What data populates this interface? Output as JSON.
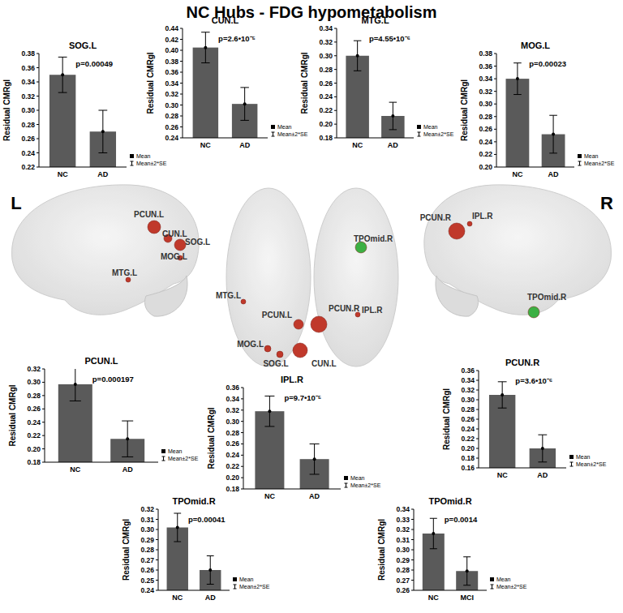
{
  "title": "NC Hubs - FDG hypometabolism",
  "chart_data": [
    {
      "type": "bar",
      "title": "SOG.L",
      "annotation": "p=0.00049",
      "y_label": "Residual CMRgl",
      "categories": [
        "NC",
        "AD"
      ],
      "values": [
        0.35,
        0.27
      ],
      "errors": [
        0.025,
        0.03
      ],
      "color": "#5a5a5a",
      "ylim": [
        0.22,
        0.38
      ],
      "yticks": [
        0.22,
        0.24,
        0.26,
        0.28,
        {
          "value": 0.3,
          "label": "0.30"
        },
        0.32,
        0.34,
        0.36,
        0.38
      ],
      "legend_entries": [
        "Mean",
        "Mean±2*SE"
      ]
    },
    {
      "type": "bar",
      "title": "CUN.L",
      "annotation": "p=2.6•10⁻⁵",
      "y_label": "Residual CMRgl",
      "categories": [
        "NC",
        "AD"
      ],
      "values": [
        0.405,
        0.302
      ],
      "errors": [
        0.028,
        0.03
      ],
      "color": "#5a5a5a",
      "ylim": [
        0.24,
        0.44
      ],
      "yticks": [
        0.24,
        0.26,
        0.28,
        {
          "value": 0.3,
          "label": "0.30"
        },
        0.32,
        0.34,
        0.36,
        0.38,
        {
          "value": 0.4,
          "label": "0.40"
        },
        0.42,
        0.44
      ],
      "legend_entries": [
        "Mean",
        "Mean±2*SE"
      ]
    },
    {
      "type": "bar",
      "title": "MTG.L",
      "annotation": "p=4.55•10⁻⁶",
      "y_label": "Residual CMRgl",
      "categories": [
        "NC",
        "AD"
      ],
      "values": [
        0.3,
        0.212
      ],
      "errors": [
        0.022,
        0.02
      ],
      "color": "#5a5a5a",
      "ylim": [
        0.18,
        0.34
      ],
      "yticks": [
        0.18,
        {
          "value": 0.2,
          "label": "0.20"
        },
        0.22,
        0.24,
        0.26,
        0.28,
        {
          "value": 0.3,
          "label": "0.30"
        },
        0.32,
        0.34
      ],
      "legend_entries": [
        "Mean",
        "Mean±2*SE"
      ]
    },
    {
      "type": "bar",
      "title": "MOG.L",
      "annotation": "p=0.00023",
      "y_label": "Residual CMRgl",
      "categories": [
        "NC",
        "AD"
      ],
      "values": [
        0.34,
        0.252
      ],
      "errors": [
        0.025,
        0.03
      ],
      "color": "#5a5a5a",
      "ylim": [
        0.2,
        0.38
      ],
      "yticks": [
        {
          "value": 0.2,
          "label": "0.20"
        },
        0.22,
        0.24,
        0.26,
        0.28,
        {
          "value": 0.3,
          "label": "0.30"
        },
        0.32,
        0.34,
        0.36,
        0.38
      ],
      "legend_entries": [
        "Mean",
        "Mean±2*SE"
      ]
    },
    {
      "type": "bar",
      "title": "PCUN.L",
      "annotation": "p=0.000197",
      "y_label": "Residual CMRgl",
      "categories": [
        "NC",
        "AD"
      ],
      "values": [
        0.297,
        0.215
      ],
      "errors": [
        0.025,
        0.027
      ],
      "color": "#5a5a5a",
      "ylim": [
        0.18,
        0.32
      ],
      "yticks": [
        0.18,
        {
          "value": 0.2,
          "label": "0.20"
        },
        0.22,
        0.24,
        0.26,
        0.28,
        {
          "value": 0.3,
          "label": "0.30"
        },
        0.32
      ],
      "legend_entries": [
        "Mean",
        "Mean±2*SE"
      ]
    },
    {
      "type": "bar",
      "title": "IPL.R",
      "annotation": "p=9.7•10⁻⁵",
      "y_label": "Residual CMRgl",
      "categories": [
        "NC",
        "AD"
      ],
      "values": [
        0.318,
        0.233
      ],
      "errors": [
        0.027,
        0.027
      ],
      "color": "#5a5a5a",
      "ylim": [
        0.18,
        0.36
      ],
      "yticks": [
        0.18,
        {
          "value": 0.2,
          "label": "0.20"
        },
        0.22,
        0.24,
        0.26,
        0.28,
        {
          "value": 0.3,
          "label": "0.30"
        },
        0.32,
        0.34,
        0.36
      ],
      "legend_entries": [
        "Mean",
        "Mean±2*SE"
      ]
    },
    {
      "type": "bar",
      "title": "PCUN.R",
      "annotation": "p=3.6•10⁻⁶",
      "y_label": "Residual CMRgl",
      "categories": [
        "NC",
        "AD"
      ],
      "values": [
        0.31,
        0.2
      ],
      "errors": [
        0.027,
        0.028
      ],
      "color": "#5a5a5a",
      "ylim": [
        0.16,
        0.36
      ],
      "yticks": [
        0.16,
        0.18,
        {
          "value": 0.2,
          "label": "0.20"
        },
        0.22,
        0.24,
        0.26,
        0.28,
        {
          "value": 0.3,
          "label": "0.30"
        },
        0.32,
        0.34,
        0.36
      ],
      "legend_entries": [
        "Mean",
        "Mean±2*SE"
      ]
    },
    {
      "type": "bar",
      "title": "TPOmid.R",
      "annotation": "p=0.00041",
      "y_label": "Residual CMRgl",
      "categories": [
        "NC",
        "AD"
      ],
      "values": [
        0.302,
        0.26
      ],
      "errors": [
        0.014,
        0.014
      ],
      "color": "#5a5a5a",
      "ylim": [
        0.24,
        0.32
      ],
      "yticks": [
        0.24,
        0.25,
        0.26,
        0.27,
        0.28,
        0.29,
        {
          "value": 0.3,
          "label": "0.30"
        },
        0.31,
        0.32
      ],
      "legend_entries": [
        "Mean",
        "Mean±2*SE"
      ]
    },
    {
      "type": "bar",
      "title": "TPOmid.R",
      "annotation": "p=0.0014",
      "y_label": "Residual CMRgl",
      "categories": [
        "NC",
        "MCI"
      ],
      "values": [
        0.316,
        0.279
      ],
      "errors": [
        0.015,
        0.014
      ],
      "color": "#5a5a5a",
      "ylim": [
        0.26,
        0.34
      ],
      "yticks": [
        0.26,
        0.27,
        0.28,
        0.29,
        {
          "value": 0.3,
          "label": "0.30"
        },
        0.31,
        0.32,
        0.33,
        0.34
      ],
      "legend_entries": [
        "Mean",
        "Mean±2*SE"
      ]
    }
  ],
  "brain_views": [
    {
      "label": "L",
      "nodes": [
        {
          "label": "PCUN.L",
          "color": "#c0392b"
        },
        {
          "label": "CUN.L",
          "color": "#c0392b"
        },
        {
          "label": "SOG.L",
          "color": "#c0392b"
        },
        {
          "label": "MOG.L",
          "color": "#c0392b"
        },
        {
          "label": "MTG.L",
          "color": "#c0392b"
        }
      ]
    },
    {
      "label": null,
      "nodes": [
        {
          "label": "TPOmid.R",
          "color": "#3cb043"
        },
        {
          "label": "MTG.L",
          "color": "#c0392b"
        },
        {
          "label": "PCUN.L",
          "color": "#c0392b"
        },
        {
          "label": "PCUN.R",
          "color": "#c0392b"
        },
        {
          "label": "IPL.R",
          "color": "#c0392b"
        },
        {
          "label": "CUN.L",
          "color": "#c0392b"
        },
        {
          "label": "MOG.L",
          "color": "#c0392b"
        },
        {
          "label": "SOG.L",
          "color": "#c0392b"
        }
      ]
    },
    {
      "label": "R",
      "nodes": [
        {
          "label": "PCUN.R",
          "color": "#c0392b"
        },
        {
          "label": "IPL.R",
          "color": "#c0392b"
        },
        {
          "label": "TPOmid.R",
          "color": "#3cb043"
        }
      ]
    }
  ]
}
